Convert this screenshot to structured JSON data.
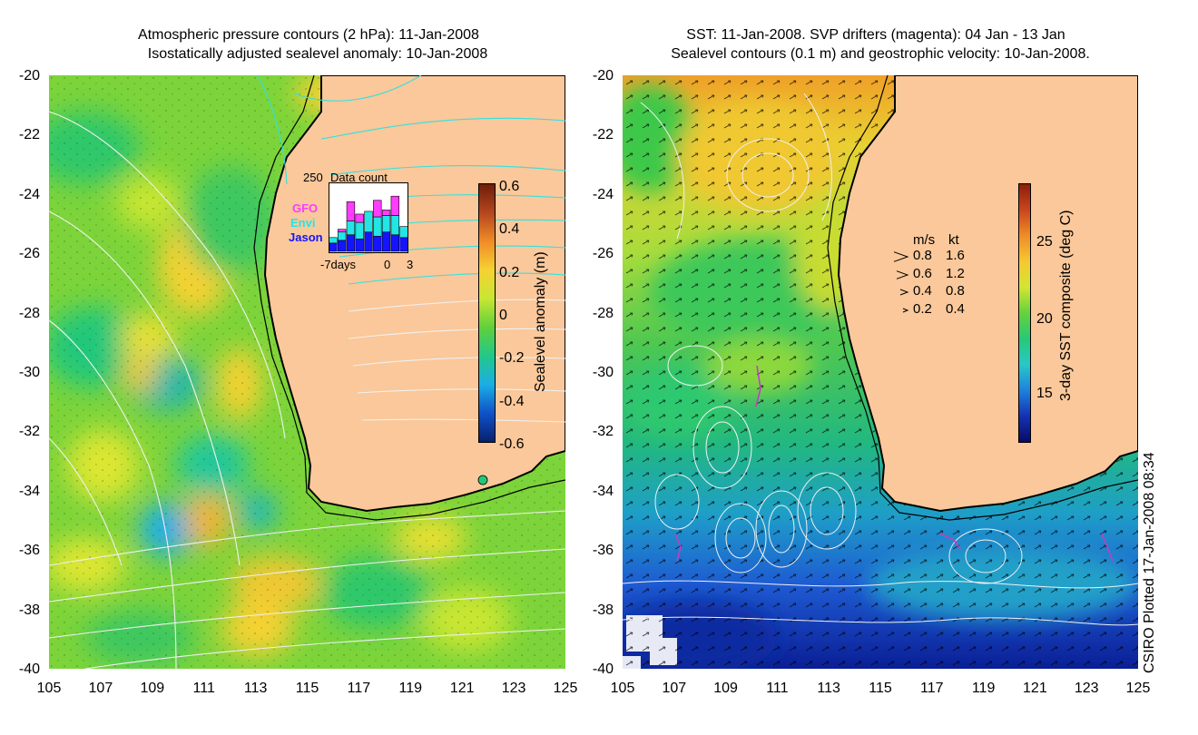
{
  "left_panel": {
    "title_line1": "Atmospheric pressure contours (2 hPa): 11-Jan-2008",
    "title_line2": "Isostatically adjusted sealevel anomaly: 10-Jan-2008",
    "y_ticks": [
      "-20",
      "-22",
      "-24",
      "-26",
      "-28",
      "-30",
      "-32",
      "-34",
      "-36",
      "-38",
      "-40"
    ],
    "x_ticks": [
      "105",
      "107",
      "109",
      "111",
      "113",
      "115",
      "117",
      "119",
      "121",
      "123",
      "125"
    ],
    "colorbar": {
      "label": "Sealevel anomaly (m)",
      "ticks": [
        "0.6",
        "0.4",
        "0.2",
        "0",
        "-0.2",
        "-0.4",
        "-0.6"
      ],
      "colors": [
        "#08206e",
        "#0f52c8",
        "#1aaee6",
        "#22c88a",
        "#5fd03c",
        "#c8e632",
        "#f5d232",
        "#f08c28",
        "#b4461e",
        "#6e1e0a"
      ]
    },
    "inset": {
      "title": "Data count",
      "ymax_label": "250",
      "x_labels": [
        "-7days",
        "0",
        "3"
      ],
      "satellites": [
        {
          "name": "GFO",
          "color": "#ff3cff"
        },
        {
          "name": "Envi",
          "color": "#22e6e6"
        },
        {
          "name": "Jason",
          "color": "#1414ff"
        }
      ],
      "bars": [
        {
          "jason": 30,
          "envi": 20,
          "gfo": 0
        },
        {
          "jason": 40,
          "envi": 30,
          "gfo": 10
        },
        {
          "jason": 60,
          "envi": 50,
          "gfo": 70
        },
        {
          "jason": 45,
          "envi": 60,
          "gfo": 30
        },
        {
          "jason": 70,
          "envi": 75,
          "gfo": 0
        },
        {
          "jason": 55,
          "envi": 70,
          "gfo": 60
        },
        {
          "jason": 70,
          "envi": 60,
          "gfo": 20
        },
        {
          "jason": 60,
          "envi": 70,
          "gfo": 70
        },
        {
          "jason": 50,
          "envi": 40,
          "gfo": 0
        }
      ]
    }
  },
  "right_panel": {
    "title_line1": "SST: 11-Jan-2008. SVP drifters (magenta): 04 Jan - 13 Jan",
    "title_line2": "Sealevel contours (0.1 m) and geostrophic velocity: 10-Jan-2008.",
    "y_ticks": [
      "-20",
      "-22",
      "-24",
      "-26",
      "-28",
      "-30",
      "-32",
      "-34",
      "-36",
      "-38",
      "-40"
    ],
    "x_ticks": [
      "105",
      "107",
      "109",
      "111",
      "113",
      "115",
      "117",
      "119",
      "121",
      "123",
      "125"
    ],
    "colorbar": {
      "label": "3-day SST composite (deg C)",
      "ticks": [
        "25",
        "20",
        "15"
      ],
      "colors": [
        "#0a0a64",
        "#1432b4",
        "#1e82dc",
        "#28c8c8",
        "#28c878",
        "#64d23c",
        "#d2e632",
        "#f5c832",
        "#f08c28",
        "#c8461e",
        "#8c1e0a"
      ]
    },
    "velocity_legend": {
      "header_ms": "m/s",
      "header_kt": "kt",
      "rows": [
        {
          "ms": "0.8",
          "kt": "1.6"
        },
        {
          "ms": "0.6",
          "kt": "1.2"
        },
        {
          "ms": "0.4",
          "kt": "0.8"
        },
        {
          "ms": "0.2",
          "kt": "0.4"
        }
      ]
    }
  },
  "credit": "CSIRO Plotted 17-Jan-2008 08:34",
  "colors": {
    "land": "#fac89a",
    "coast": "#000000",
    "pressure_contour_warm": "#34e0e0",
    "pressure_contour_cool": "#f0f0f0",
    "drifter": "#c040c0"
  }
}
